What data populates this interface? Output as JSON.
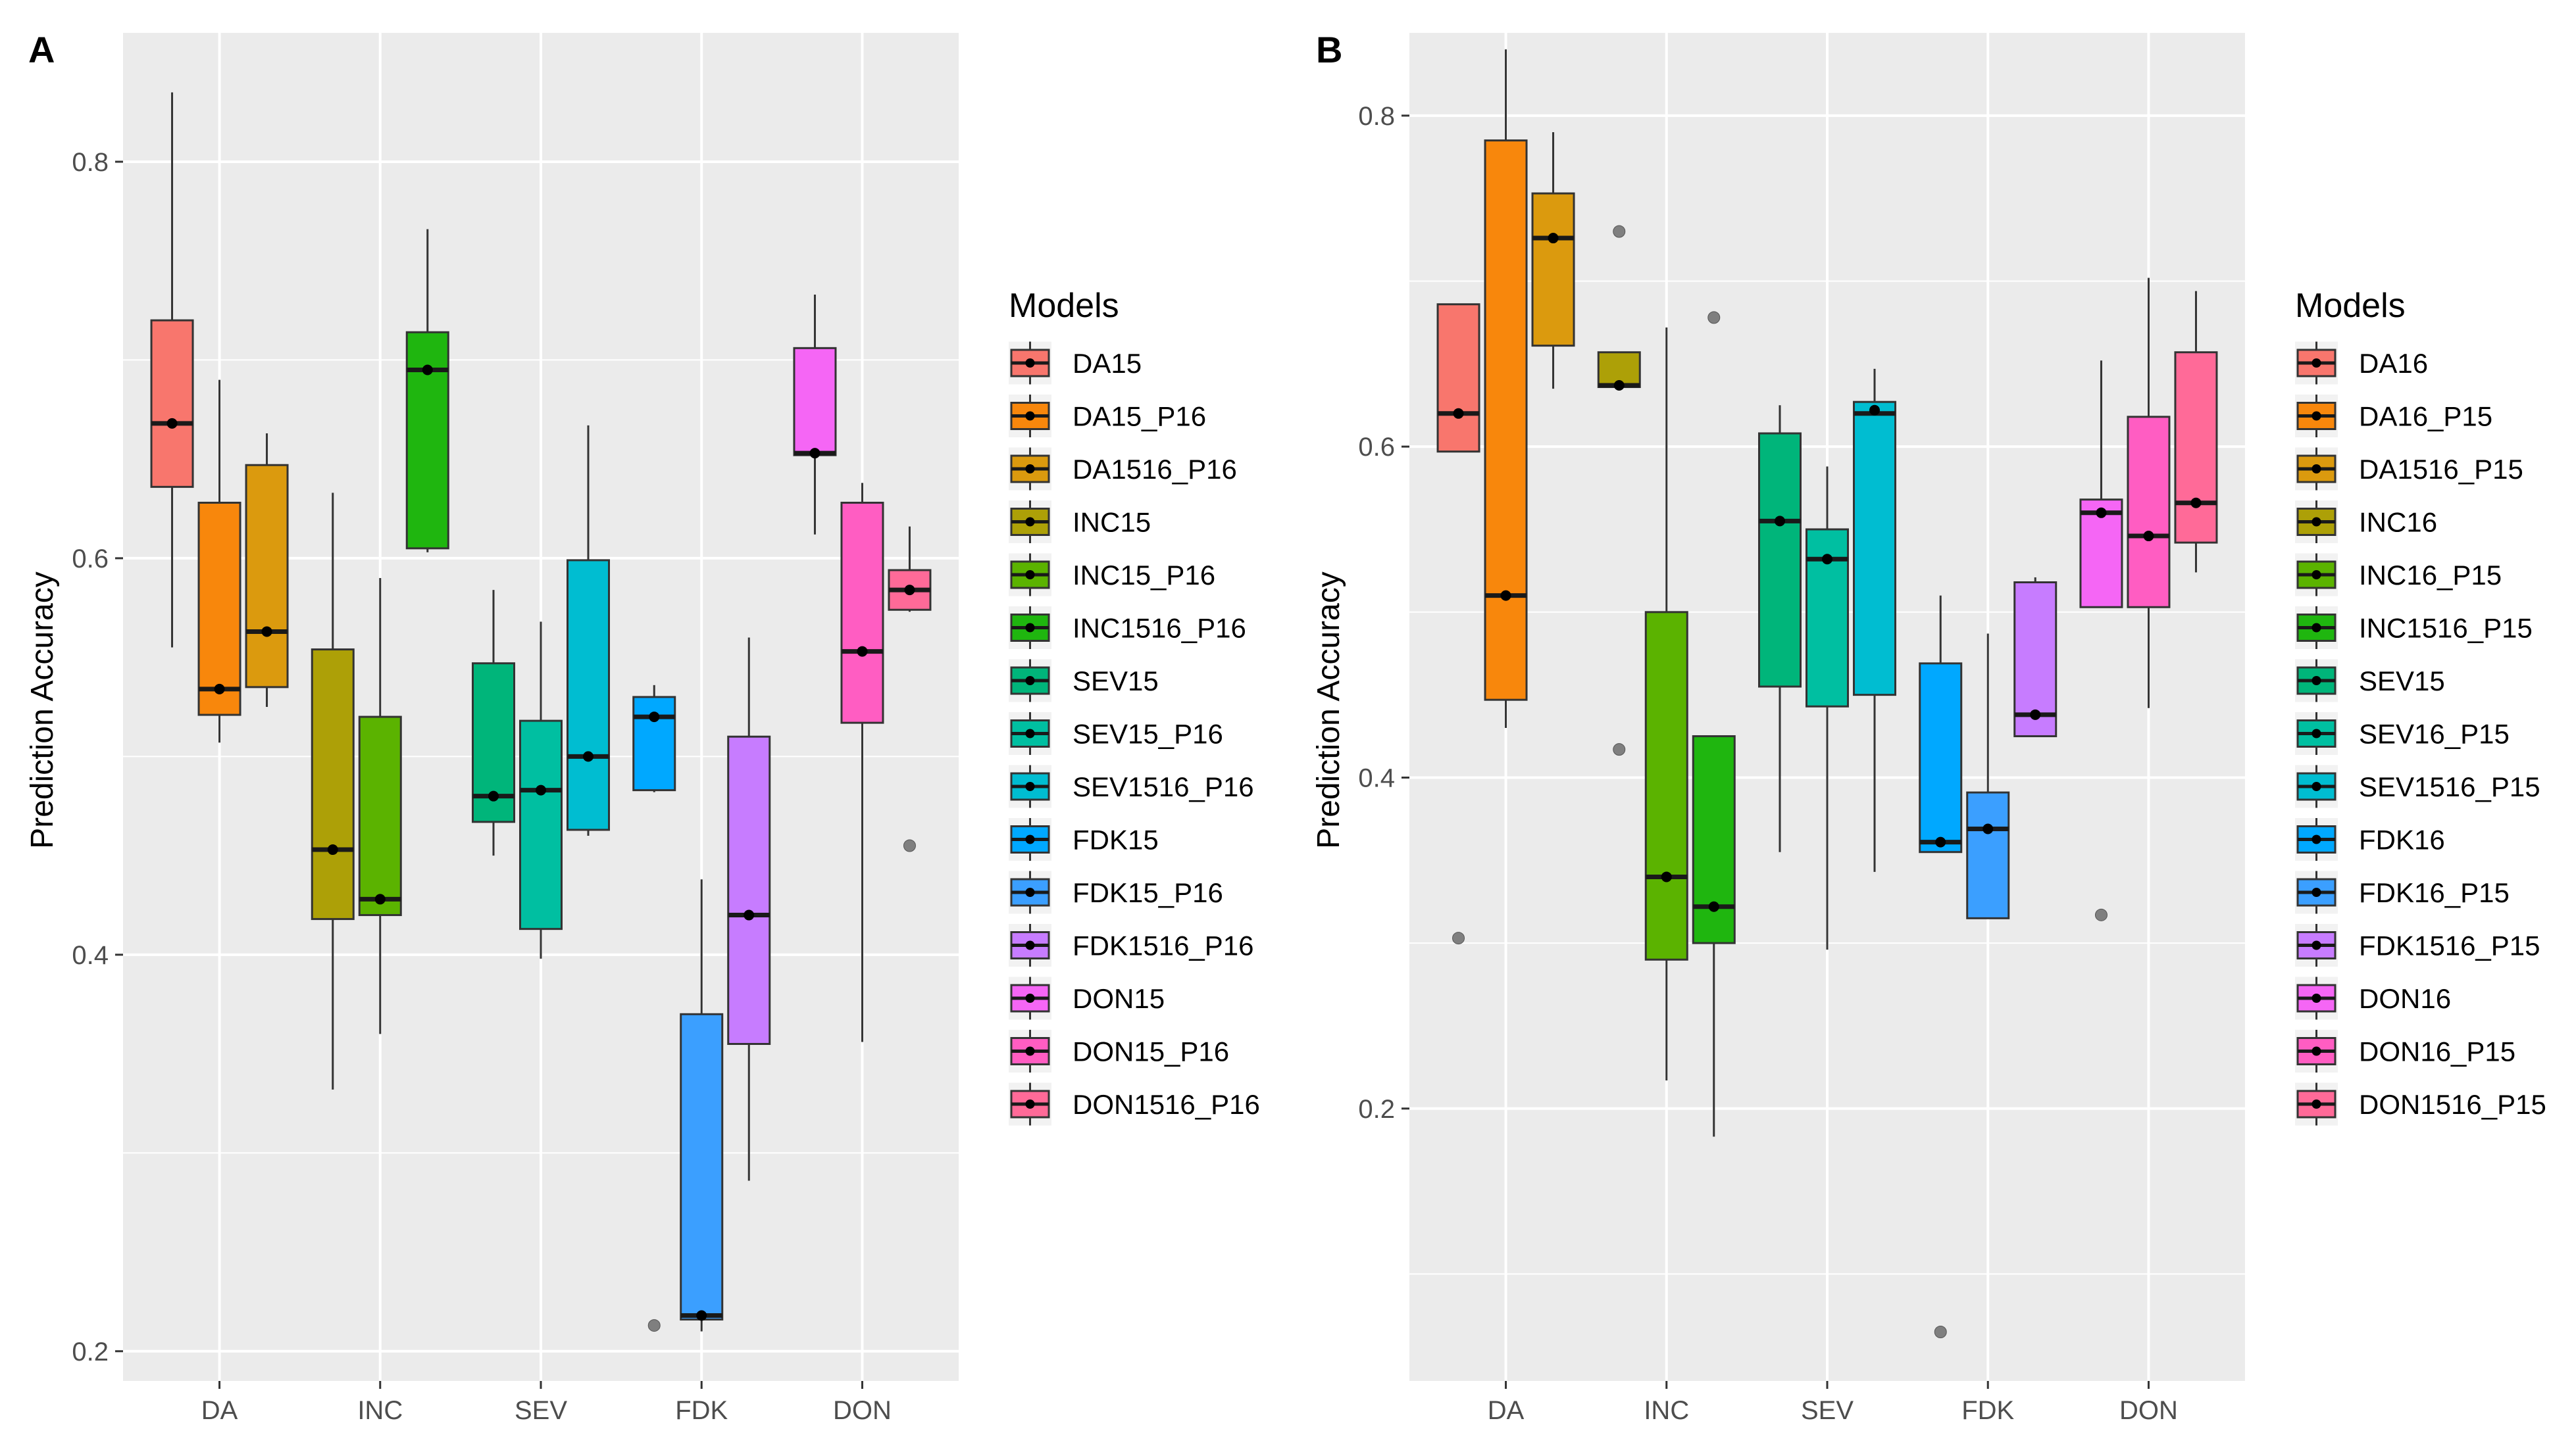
{
  "chart_data": [
    {
      "panel_label": "A",
      "type": "boxplot",
      "ylabel": "Prediction Accuracy",
      "xlabel": "",
      "ylim": [
        0.185,
        0.865
      ],
      "yticks": [
        {
          "value": 0.2,
          "label": "0.2"
        },
        {
          "value": 0.4,
          "label": "0.4"
        },
        {
          "value": 0.6,
          "label": "0.6"
        },
        {
          "value": 0.8,
          "label": "0.8"
        }
      ],
      "categories": [
        "DA",
        "INC",
        "SEV",
        "FDK",
        "DON"
      ],
      "legend_title": "Models",
      "legend_position": "right",
      "grid": true,
      "series": [
        {
          "name": "DA15",
          "category": "DA",
          "slot": 0,
          "color": "#F8766D",
          "min": 0.555,
          "q1": 0.636,
          "median": 0.668,
          "q3": 0.72,
          "max": 0.835,
          "mean": 0.668,
          "outliers": []
        },
        {
          "name": "DA15_P16",
          "category": "DA",
          "slot": 1,
          "color": "#F8870C",
          "min": 0.507,
          "q1": 0.521,
          "median": 0.534,
          "q3": 0.628,
          "max": 0.69,
          "mean": 0.534,
          "outliers": []
        },
        {
          "name": "DA1516_P16",
          "category": "DA",
          "slot": 2,
          "color": "#DB9A0E",
          "min": 0.525,
          "q1": 0.535,
          "median": 0.563,
          "q3": 0.647,
          "max": 0.663,
          "mean": 0.563,
          "outliers": []
        },
        {
          "name": "INC15",
          "category": "INC",
          "slot": 0,
          "color": "#ADA007",
          "min": 0.332,
          "q1": 0.418,
          "median": 0.453,
          "q3": 0.554,
          "max": 0.633,
          "mean": 0.453,
          "outliers": []
        },
        {
          "name": "INC15_P16",
          "category": "INC",
          "slot": 1,
          "color": "#5BB300",
          "min": 0.36,
          "q1": 0.42,
          "median": 0.428,
          "q3": 0.52,
          "max": 0.59,
          "mean": 0.428,
          "outliers": []
        },
        {
          "name": "INC1516_P16",
          "category": "INC",
          "slot": 2,
          "color": "#1FB60F",
          "min": 0.603,
          "q1": 0.605,
          "median": 0.695,
          "q3": 0.714,
          "max": 0.766,
          "mean": 0.695,
          "outliers": []
        },
        {
          "name": "SEV15",
          "category": "SEV",
          "slot": 0,
          "color": "#00B57A",
          "min": 0.45,
          "q1": 0.467,
          "median": 0.48,
          "q3": 0.547,
          "max": 0.584,
          "mean": 0.48,
          "outliers": []
        },
        {
          "name": "SEV15_P16",
          "category": "SEV",
          "slot": 1,
          "color": "#00BFA1",
          "min": 0.398,
          "q1": 0.413,
          "median": 0.483,
          "q3": 0.518,
          "max": 0.568,
          "mean": 0.483,
          "outliers": []
        },
        {
          "name": "SEV1516_P16",
          "category": "SEV",
          "slot": 2,
          "color": "#00BDD1",
          "min": 0.46,
          "q1": 0.463,
          "median": 0.5,
          "q3": 0.599,
          "max": 0.667,
          "mean": 0.5,
          "outliers": []
        },
        {
          "name": "FDK15",
          "category": "FDK",
          "slot": 0,
          "color": "#00A8FF",
          "min": 0.482,
          "q1": 0.483,
          "median": 0.52,
          "q3": 0.53,
          "max": 0.536,
          "mean": 0.52,
          "outliers": [
            0.213
          ]
        },
        {
          "name": "FDK15_P16",
          "category": "FDK",
          "slot": 1,
          "color": "#3B9FFF",
          "min": 0.21,
          "q1": 0.216,
          "median": 0.218,
          "q3": 0.37,
          "max": 0.438,
          "mean": 0.218,
          "outliers": []
        },
        {
          "name": "FDK1516_P16",
          "category": "FDK",
          "slot": 2,
          "color": "#C77CFF",
          "min": 0.286,
          "q1": 0.355,
          "median": 0.42,
          "q3": 0.51,
          "max": 0.56,
          "mean": 0.42,
          "outliers": []
        },
        {
          "name": "DON15",
          "category": "DON",
          "slot": 0,
          "color": "#F566F5",
          "min": 0.612,
          "q1": 0.652,
          "median": 0.653,
          "q3": 0.706,
          "max": 0.733,
          "mean": 0.653,
          "outliers": []
        },
        {
          "name": "DON15_P16",
          "category": "DON",
          "slot": 1,
          "color": "#FF5DC2",
          "min": 0.356,
          "q1": 0.517,
          "median": 0.553,
          "q3": 0.628,
          "max": 0.638,
          "mean": 0.553,
          "outliers": []
        },
        {
          "name": "DON1516_P16",
          "category": "DON",
          "slot": 2,
          "color": "#FF6A98",
          "min": 0.573,
          "q1": 0.574,
          "median": 0.584,
          "q3": 0.594,
          "max": 0.616,
          "mean": 0.584,
          "outliers": [
            0.455
          ]
        }
      ]
    },
    {
      "panel_label": "B",
      "type": "boxplot",
      "ylabel": "Prediction Accuracy",
      "xlabel": "",
      "ylim": [
        0.0354,
        0.85
      ],
      "yticks": [
        {
          "value": 0.2,
          "label": "0.2"
        },
        {
          "value": 0.4,
          "label": "0.4"
        },
        {
          "value": 0.6,
          "label": "0.6"
        },
        {
          "value": 0.8,
          "label": "0.8"
        }
      ],
      "categories": [
        "DA",
        "INC",
        "SEV",
        "FDK",
        "DON"
      ],
      "legend_title": "Models",
      "legend_position": "right",
      "grid": true,
      "series": [
        {
          "name": "DA16",
          "category": "DA",
          "slot": 0,
          "color": "#F8766D",
          "min": 0.597,
          "q1": 0.597,
          "median": 0.62,
          "q3": 0.686,
          "max": 0.686,
          "mean": 0.62,
          "outliers": [
            0.303
          ]
        },
        {
          "name": "DA16_P15",
          "category": "DA",
          "slot": 1,
          "color": "#F8870C",
          "min": 0.43,
          "q1": 0.447,
          "median": 0.51,
          "q3": 0.785,
          "max": 0.84,
          "mean": 0.51,
          "outliers": []
        },
        {
          "name": "DA1516_P15",
          "category": "DA",
          "slot": 2,
          "color": "#DB9A0E",
          "min": 0.635,
          "q1": 0.661,
          "median": 0.726,
          "q3": 0.753,
          "max": 0.79,
          "mean": 0.726,
          "outliers": []
        },
        {
          "name": "INC16",
          "category": "INC",
          "slot": 0,
          "color": "#ADA007",
          "min": 0.636,
          "q1": 0.636,
          "median": 0.637,
          "q3": 0.657,
          "max": 0.657,
          "mean": 0.637,
          "outliers": [
            0.73,
            0.417
          ]
        },
        {
          "name": "INC16_P15",
          "category": "INC",
          "slot": 1,
          "color": "#5BB300",
          "min": 0.217,
          "q1": 0.29,
          "median": 0.34,
          "q3": 0.5,
          "max": 0.672,
          "mean": 0.34,
          "outliers": []
        },
        {
          "name": "INC1516_P15",
          "category": "INC",
          "slot": 2,
          "color": "#1FB60F",
          "min": 0.183,
          "q1": 0.3,
          "median": 0.322,
          "q3": 0.425,
          "max": 0.425,
          "mean": 0.322,
          "outliers": [
            0.678
          ]
        },
        {
          "name": "SEV15",
          "category": "SEV",
          "slot": 0,
          "color": "#00B57A",
          "min": 0.355,
          "q1": 0.455,
          "median": 0.555,
          "q3": 0.608,
          "max": 0.625,
          "mean": 0.555,
          "outliers": []
        },
        {
          "name": "SEV16_P15",
          "category": "SEV",
          "slot": 1,
          "color": "#00BFA1",
          "min": 0.296,
          "q1": 0.443,
          "median": 0.532,
          "q3": 0.55,
          "max": 0.588,
          "mean": 0.532,
          "outliers": []
        },
        {
          "name": "SEV1516_P15",
          "category": "SEV",
          "slot": 2,
          "color": "#00BDD1",
          "min": 0.343,
          "q1": 0.45,
          "median": 0.62,
          "q3": 0.627,
          "max": 0.647,
          "mean": 0.622,
          "outliers": []
        },
        {
          "name": "FDK16",
          "category": "FDK",
          "slot": 0,
          "color": "#00A8FF",
          "min": 0.355,
          "q1": 0.355,
          "median": 0.361,
          "q3": 0.469,
          "max": 0.51,
          "mean": 0.361,
          "outliers": [
            0.065
          ]
        },
        {
          "name": "FDK16_P15",
          "category": "FDK",
          "slot": 1,
          "color": "#3B9FFF",
          "min": 0.315,
          "q1": 0.315,
          "median": 0.369,
          "q3": 0.391,
          "max": 0.487,
          "mean": 0.369,
          "outliers": []
        },
        {
          "name": "FDK1516_P15",
          "category": "FDK",
          "slot": 2,
          "color": "#C77CFF",
          "min": 0.425,
          "q1": 0.425,
          "median": 0.438,
          "q3": 0.518,
          "max": 0.521,
          "mean": 0.438,
          "outliers": []
        },
        {
          "name": "DON16",
          "category": "DON",
          "slot": 0,
          "color": "#F566F5",
          "min": 0.503,
          "q1": 0.503,
          "median": 0.56,
          "q3": 0.568,
          "max": 0.652,
          "mean": 0.56,
          "outliers": [
            0.317
          ]
        },
        {
          "name": "DON16_P15",
          "category": "DON",
          "slot": 1,
          "color": "#FF5DC2",
          "min": 0.442,
          "q1": 0.503,
          "median": 0.546,
          "q3": 0.618,
          "max": 0.702,
          "mean": 0.546,
          "outliers": []
        },
        {
          "name": "DON1516_P15",
          "category": "DON",
          "slot": 2,
          "color": "#FF6A98",
          "min": 0.524,
          "q1": 0.542,
          "median": 0.566,
          "q3": 0.657,
          "max": 0.694,
          "mean": 0.566,
          "outliers": []
        }
      ]
    }
  ]
}
